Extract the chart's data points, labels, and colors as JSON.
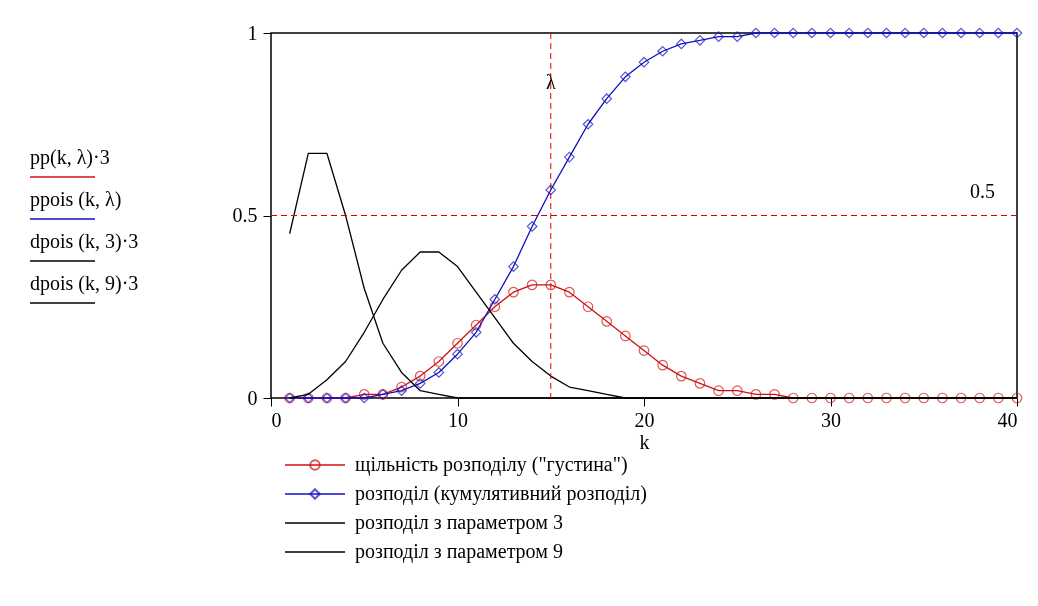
{
  "chart_data": {
    "type": "line",
    "xlabel": "k",
    "ylabel": "pp(k, λ)·3\nppois (k, λ)\ndpois (k, 3)·3\ndpois (k, 9)·3",
    "x": [
      1,
      2,
      3,
      4,
      5,
      6,
      7,
      8,
      9,
      10,
      11,
      12,
      13,
      14,
      15,
      16,
      17,
      18,
      19,
      20,
      21,
      22,
      23,
      24,
      25,
      26,
      27,
      28,
      29,
      30,
      31,
      32,
      33,
      34,
      35,
      36,
      37,
      38,
      39,
      40
    ],
    "series": [
      {
        "name": "щільність розподілу (\"густина\")",
        "color": "#d01010",
        "marker": "circle",
        "values": [
          0,
          0,
          0,
          0,
          0.01,
          0.01,
          0.03,
          0.06,
          0.1,
          0.15,
          0.2,
          0.25,
          0.29,
          0.31,
          0.31,
          0.29,
          0.25,
          0.21,
          0.17,
          0.13,
          0.09,
          0.06,
          0.04,
          0.02,
          0.02,
          0.01,
          0.01,
          0,
          0,
          0,
          0,
          0,
          0,
          0,
          0,
          0,
          0,
          0,
          0,
          0
        ]
      },
      {
        "name": "розподіл (кумулятивний розподіл)",
        "color": "#1010c0",
        "marker": "diamond",
        "values": [
          0,
          0,
          0,
          0,
          0,
          0.01,
          0.02,
          0.04,
          0.07,
          0.12,
          0.18,
          0.27,
          0.36,
          0.47,
          0.57,
          0.66,
          0.75,
          0.82,
          0.88,
          0.92,
          0.95,
          0.97,
          0.98,
          0.99,
          0.99,
          1,
          1,
          1,
          1,
          1,
          1,
          1,
          1,
          1,
          1,
          1,
          1,
          1,
          1,
          1
        ]
      },
      {
        "name": "розподіл з параметром 3",
        "color": "#000000",
        "marker": "none",
        "values": [
          0.45,
          0.67,
          0.67,
          0.5,
          0.3,
          0.15,
          0.07,
          0.02,
          0.01,
          0,
          0,
          0,
          0,
          0,
          0,
          0,
          0,
          0,
          0,
          0,
          0,
          0,
          0,
          0,
          0,
          0,
          0,
          0,
          0,
          0,
          0,
          0,
          0,
          0,
          0,
          0,
          0,
          0,
          0,
          0
        ]
      },
      {
        "name": "розподіл з параметром 9",
        "color": "#000000",
        "marker": "none",
        "values": [
          0,
          0.01,
          0.05,
          0.1,
          0.18,
          0.27,
          0.35,
          0.4,
          0.4,
          0.36,
          0.29,
          0.22,
          0.15,
          0.1,
          0.06,
          0.03,
          0.02,
          0.01,
          0,
          0,
          0,
          0,
          0,
          0,
          0,
          0,
          0,
          0,
          0,
          0,
          0,
          0,
          0,
          0,
          0,
          0,
          0,
          0,
          0,
          0
        ]
      }
    ],
    "xlim": [
      0,
      40
    ],
    "xticks": [
      0,
      10,
      20,
      30,
      40
    ],
    "ylim": [
      0,
      1
    ],
    "yticks": [
      0,
      0.5,
      1
    ],
    "ref_lines": [
      {
        "axis": "x",
        "value": 15,
        "label": "λ",
        "color": "#e00000",
        "line_style": "dashed"
      },
      {
        "axis": "y",
        "value": 0.5,
        "label": "0.5",
        "color": "#e00000",
        "line_style": "dashed"
      }
    ],
    "grid": false,
    "legend": "bottom",
    "line_style": "solid"
  }
}
